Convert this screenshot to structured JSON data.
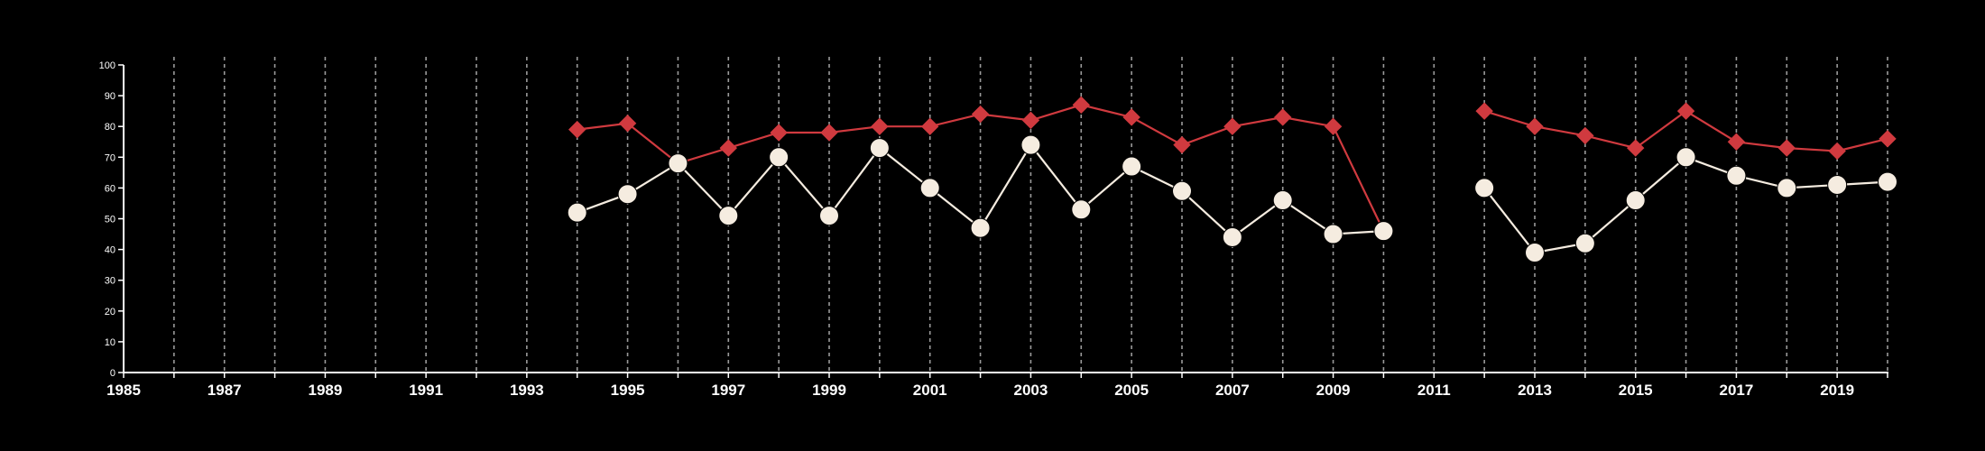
{
  "chart_data": {
    "type": "line",
    "title": "",
    "xlabel": "",
    "ylabel": "",
    "xlim": [
      1985,
      2020
    ],
    "ylim": [
      0,
      100
    ],
    "x_ticks": [
      "1985",
      "1987",
      "1989",
      "1991",
      "1993",
      "1995",
      "1997",
      "1999",
      "2001",
      "2003",
      "2005",
      "2007",
      "2009",
      "2011",
      "2013",
      "2015",
      "2017",
      "2019"
    ],
    "y_ticks": [
      "0",
      "10",
      "20",
      "30",
      "40",
      "50",
      "60",
      "70",
      "80",
      "90",
      "100"
    ],
    "grid": {
      "vertical_dashed_each_year": true,
      "horizontal": false
    },
    "legend": "none",
    "series": [
      {
        "marker": "diamond",
        "color": "#d03a3f",
        "points": [
          [
            1994,
            79
          ],
          [
            1995,
            81
          ],
          [
            1996,
            68
          ],
          [
            1997,
            73
          ],
          [
            1998,
            78
          ],
          [
            1999,
            78
          ],
          [
            2000,
            80
          ],
          [
            2001,
            80
          ],
          [
            2002,
            84
          ],
          [
            2003,
            82
          ],
          [
            2004,
            87
          ],
          [
            2005,
            83
          ],
          [
            2006,
            74
          ],
          [
            2007,
            80
          ],
          [
            2008,
            83
          ],
          [
            2009,
            80
          ],
          [
            2010,
            46
          ],
          [
            2011,
            null
          ],
          [
            2012,
            85
          ],
          [
            2013,
            80
          ],
          [
            2014,
            77
          ],
          [
            2015,
            73
          ],
          [
            2016,
            85
          ],
          [
            2017,
            75
          ],
          [
            2018,
            73
          ],
          [
            2019,
            72
          ],
          [
            2020,
            76
          ]
        ]
      },
      {
        "marker": "circle",
        "color": "#f5ece0",
        "points": [
          [
            1994,
            52
          ],
          [
            1995,
            58
          ],
          [
            1996,
            68
          ],
          [
            1997,
            51
          ],
          [
            1998,
            70
          ],
          [
            1999,
            51
          ],
          [
            2000,
            73
          ],
          [
            2001,
            60
          ],
          [
            2002,
            47
          ],
          [
            2003,
            74
          ],
          [
            2004,
            53
          ],
          [
            2005,
            67
          ],
          [
            2006,
            59
          ],
          [
            2007,
            44
          ],
          [
            2008,
            56
          ],
          [
            2009,
            45
          ],
          [
            2010,
            46
          ],
          [
            2011,
            null
          ],
          [
            2012,
            60
          ],
          [
            2013,
            39
          ],
          [
            2014,
            42
          ],
          [
            2015,
            56
          ],
          [
            2016,
            70
          ],
          [
            2017,
            64
          ],
          [
            2018,
            60
          ],
          [
            2019,
            61
          ],
          [
            2020,
            62
          ]
        ]
      }
    ]
  }
}
